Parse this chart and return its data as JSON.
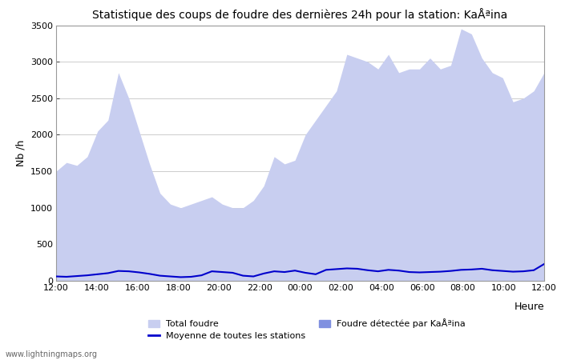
{
  "title": "Statistique des coups de foudre des dernières 24h pour la station: KaÅªina",
  "ylabel": "Nb /h",
  "xlabel_right": "Heure",
  "watermark": "www.lightningmaps.org",
  "x_labels": [
    "12:00",
    "14:00",
    "16:00",
    "18:00",
    "20:00",
    "22:00",
    "00:00",
    "02:00",
    "04:00",
    "06:00",
    "08:00",
    "10:00",
    "12:00"
  ],
  "ylim": [
    0,
    3500
  ],
  "yticks": [
    0,
    500,
    1000,
    1500,
    2000,
    2500,
    3000,
    3500
  ],
  "color_total": "#c8cef0",
  "color_station": "#8090e0",
  "color_mean": "#0000cc",
  "bg_color": "#ffffff",
  "grid_color": "#cccccc",
  "total_foudre": [
    1500,
    1620,
    1580,
    1700,
    2050,
    2200,
    2850,
    2500,
    2050,
    1600,
    1200,
    1050,
    1000,
    1050,
    1100,
    1150,
    1050,
    1000,
    1000,
    1100,
    1300,
    1700,
    1600,
    1650,
    2000,
    2200,
    2400,
    2600,
    3100,
    3050,
    3000,
    2900,
    3100,
    2850,
    2900,
    2900,
    3050,
    2900,
    2950,
    3450,
    3380,
    3050,
    2850,
    2780,
    2450,
    2500,
    2600,
    2850
  ],
  "station_foudre": [
    0,
    0,
    0,
    0,
    0,
    0,
    0,
    0,
    0,
    0,
    0,
    0,
    0,
    0,
    0,
    0,
    0,
    0,
    0,
    0,
    0,
    0,
    0,
    0,
    0,
    0,
    0,
    0,
    0,
    0,
    0,
    0,
    0,
    0,
    0,
    0,
    0,
    0,
    0,
    0,
    0,
    0,
    0,
    0,
    0,
    0,
    0,
    0
  ],
  "mean_line": [
    60,
    55,
    65,
    75,
    90,
    105,
    135,
    130,
    115,
    95,
    70,
    60,
    50,
    55,
    75,
    130,
    120,
    110,
    70,
    60,
    100,
    130,
    120,
    140,
    110,
    90,
    150,
    160,
    170,
    165,
    145,
    130,
    150,
    140,
    120,
    115,
    120,
    125,
    135,
    150,
    155,
    165,
    145,
    135,
    125,
    130,
    145,
    230
  ],
  "legend_total": "Total foudre",
  "legend_mean": "Moyenne de toutes les stations",
  "legend_station": "Foudre détectée par KaÅªina"
}
